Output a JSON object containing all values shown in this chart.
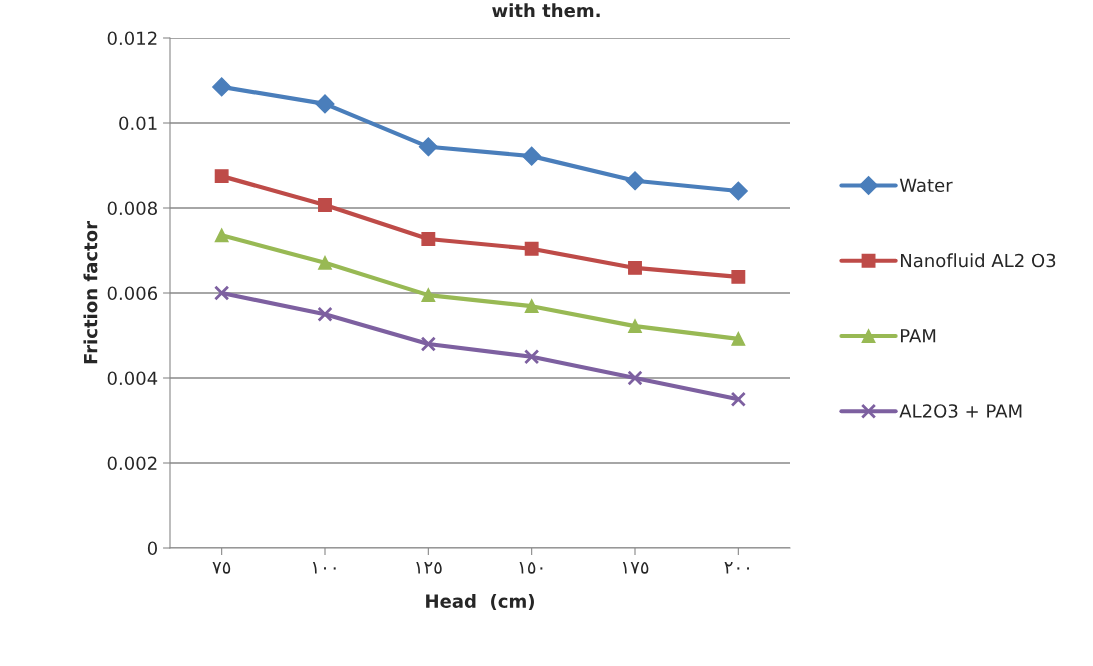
{
  "chart_data": {
    "type": "line",
    "title": "with them.",
    "xlabel": "Head  (cm)",
    "ylabel": "Friction factor",
    "categories": [
      "٧٥",
      "١٠٠",
      "١٢٥",
      "١٥٠",
      "١٧٥",
      "٢٠٠"
    ],
    "series": [
      {
        "name": "Water",
        "color": "#4a7ebb",
        "marker": "diamond",
        "values": [
          0.01085,
          0.01045,
          0.00944,
          0.00922,
          0.00864,
          0.0084
        ]
      },
      {
        "name": "Nanofluid AL2 O3",
        "color": "#be4b48",
        "marker": "square",
        "values": [
          0.00875,
          0.00807,
          0.00727,
          0.00704,
          0.00659,
          0.00638
        ]
      },
      {
        "name": "PAM",
        "color": "#98b954",
        "marker": "triangle",
        "values": [
          0.00736,
          0.00671,
          0.00595,
          0.00569,
          0.00522,
          0.00492
        ]
      },
      {
        "name": "AL2O3 + PAM",
        "color": "#7d60a0",
        "marker": "cross",
        "values": [
          0.006,
          0.0055,
          0.0048,
          0.0045,
          0.004,
          0.0035
        ]
      }
    ],
    "ylim": [
      0,
      0.012
    ],
    "yticks": [
      {
        "value": 0,
        "label": "0"
      },
      0.002,
      0.004,
      0.006,
      0.008,
      0.01,
      0.012
    ],
    "grid": "y",
    "legend": "right",
    "line_style": "solid"
  }
}
